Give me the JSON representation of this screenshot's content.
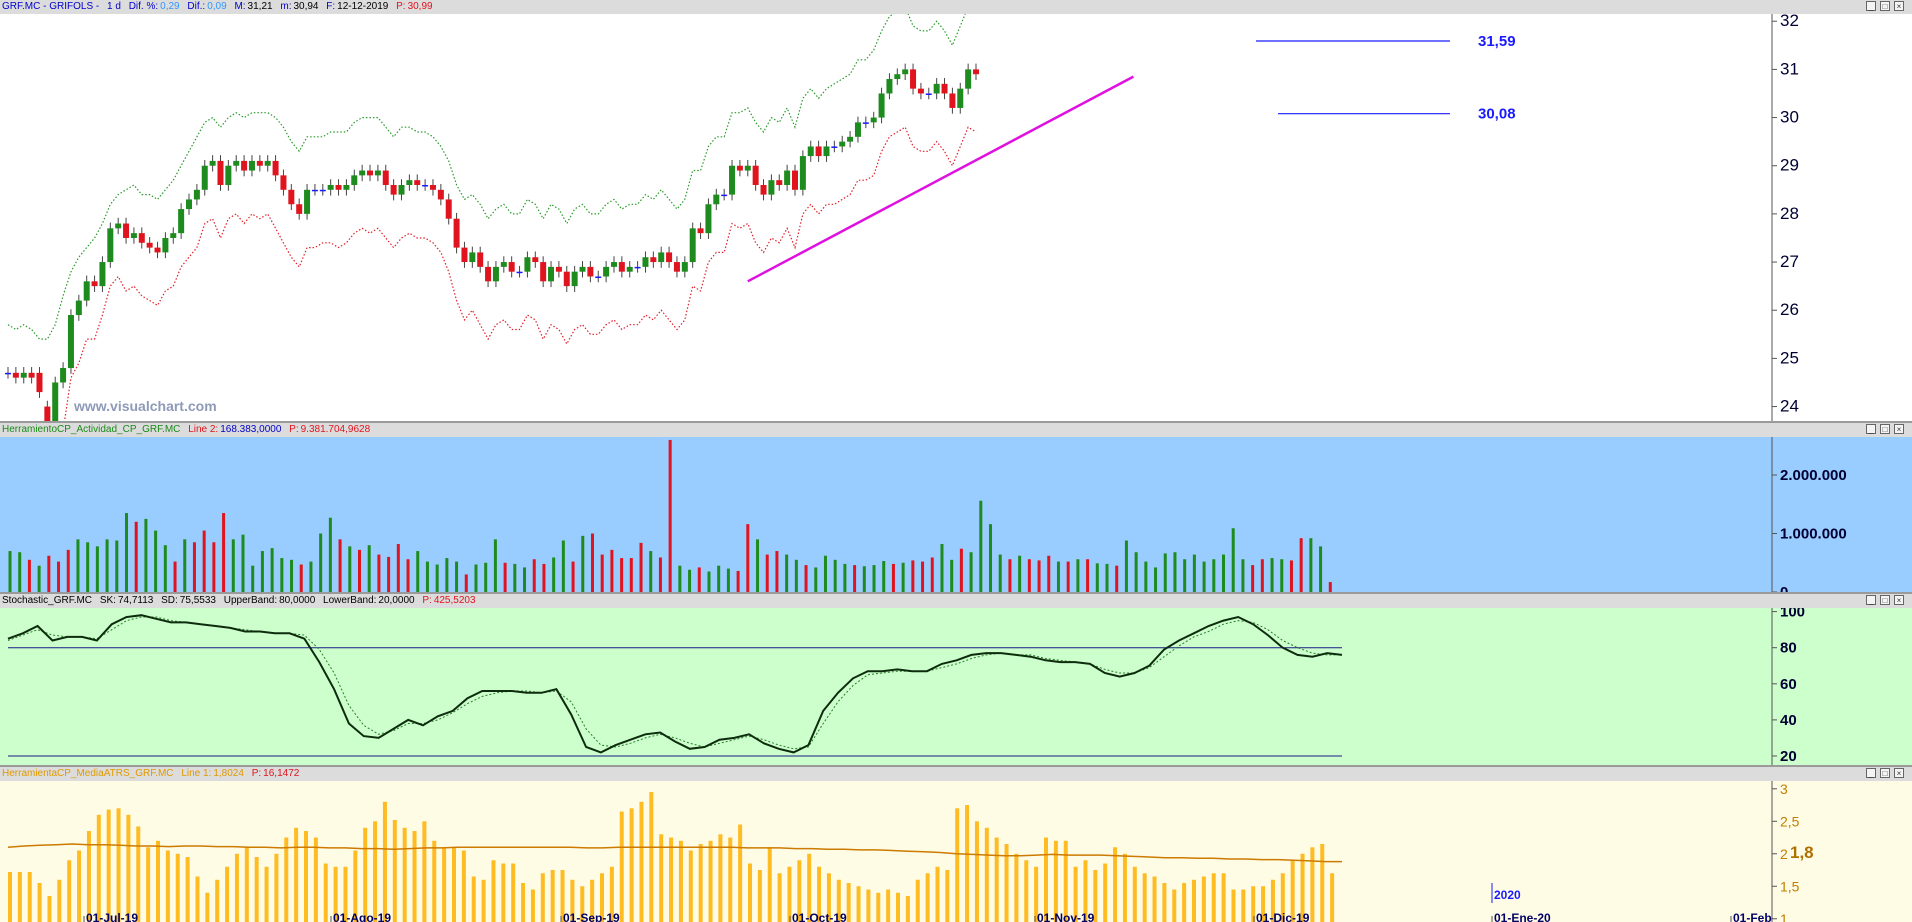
{
  "colors": {
    "up": "#1e8b1e",
    "down": "#e0141e",
    "neutral": "#1a1aff",
    "upper_band": "#2a9a2a",
    "lower_band": "#e0202a",
    "trendline": "#e010e0",
    "level_line": "#1a1aff",
    "volume_bg": "#99ccff",
    "stoch_bg": "#ccffcc",
    "atr_bg": "#fffce6",
    "atr_bar": "#ffbb22",
    "atr_avg": "#cc7a00"
  },
  "header_main": {
    "ticker": "GRF.MC - GRIFOLS -",
    "period": "1 d",
    "dif_pct_label": "Dif. %:",
    "dif_pct": "0,29",
    "dif_label": "Dif.:",
    "dif": "0,09",
    "max_label": "M:",
    "max": "31,21",
    "min_label": "m:",
    "min": "30,94",
    "date_label": "F:",
    "date": "12-12-2019",
    "price_label": "P:",
    "price": "30,99"
  },
  "header_volume": {
    "name": "HerramientoCP_Actividad_CP_GRF.MC",
    "line_label": "Line 2:",
    "line_value": "168.383,0000",
    "p_label": "P:",
    "p_value": "9.381.704,9628"
  },
  "header_stoch": {
    "name": "Stochastic_GRF.MC",
    "sk_label": "SK:",
    "sk": "74,7113",
    "sd_label": "SD:",
    "sd": "75,5533",
    "ub_label": "UpperBand:",
    "ub": "80,0000",
    "lb_label": "LowerBand:",
    "lb": "20,0000",
    "p_label": "P:",
    "p": "425,5203"
  },
  "header_atr": {
    "name": "HerramientaCP_MediaATRS_GRF.MC",
    "line_label": "Line 1:",
    "line_value": "1,8024",
    "p_label": "P:",
    "p_value": "16,1472"
  },
  "watermark": "www.visualchart.com",
  "year_marker": "2020",
  "x_axis": [
    "01-Jul-19",
    "01-Ago-19",
    "01-Sep-19",
    "01-Oct-19",
    "01-Nov-19",
    "01-Dic-19",
    "01-Ene-20",
    "01-Feb"
  ],
  "chart_data": [
    {
      "type": "candlestick",
      "y_ticks": [
        "24",
        "25",
        "26",
        "27",
        "28",
        "29",
        "30",
        "31",
        "32"
      ],
      "ylim": [
        23.7,
        32.15
      ],
      "levels": [
        {
          "label": "31,59",
          "value": 31.59
        },
        {
          "label": "30,08",
          "value": 30.08
        }
      ],
      "trendline": {
        "from": {
          "bar": 1,
          "value": 26.6
        },
        "to": {
          "bar": 1.77,
          "value": 30.85
        }
      },
      "close": [
        24.7,
        24.6,
        24.7,
        24.6,
        24.3,
        23.6,
        24.5,
        24.8,
        25.9,
        26.2,
        26.6,
        26.5,
        27.0,
        27.7,
        27.8,
        27.5,
        27.6,
        27.4,
        27.3,
        27.2,
        27.5,
        27.6,
        28.1,
        28.3,
        28.5,
        29.0,
        29.1,
        28.6,
        29.0,
        29.1,
        28.9,
        29.1,
        29.0,
        29.1,
        28.8,
        28.5,
        28.2,
        28.0,
        28.5,
        28.5,
        28.5,
        28.6,
        28.5,
        28.6,
        28.8,
        28.9,
        28.8,
        28.9,
        28.6,
        28.4,
        28.6,
        28.7,
        28.6,
        28.6,
        28.5,
        28.3,
        27.9,
        27.3,
        27.0,
        27.2,
        26.9,
        26.6,
        26.9,
        27.0,
        26.8,
        26.8,
        27.1,
        27.0,
        26.6,
        26.9,
        26.8,
        26.5,
        26.8,
        26.9,
        26.7,
        26.7,
        26.9,
        27.0,
        26.8,
        26.9,
        26.9,
        27.1,
        27.0,
        27.2,
        27.0,
        26.8,
        27.0,
        27.7,
        27.6,
        28.2,
        28.4,
        28.4,
        29.0,
        28.9,
        29.0,
        28.6,
        28.4,
        28.7,
        28.6,
        28.9,
        28.5,
        29.2,
        29.4,
        29.2,
        29.4,
        29.4,
        29.5,
        29.6,
        29.9,
        29.9,
        30.0,
        30.5,
        30.8,
        30.9,
        31.0,
        30.6,
        30.5,
        30.5,
        30.7,
        30.5,
        30.2,
        30.6,
        31.0,
        30.9
      ],
      "open": [
        24.7,
        24.7,
        24.6,
        24.7,
        24.7,
        24.0,
        23.6,
        24.5,
        24.8,
        25.9,
        26.2,
        26.6,
        26.5,
        27.0,
        27.7,
        27.8,
        27.5,
        27.6,
        27.4,
        27.3,
        27.2,
        27.5,
        27.6,
        28.1,
        28.3,
        28.5,
        29.0,
        29.1,
        28.6,
        29.0,
        29.1,
        28.9,
        29.1,
        29.0,
        29.1,
        28.8,
        28.5,
        28.2,
        28.0,
        28.5,
        28.5,
        28.5,
        28.6,
        28.5,
        28.6,
        28.8,
        28.9,
        28.8,
        28.9,
        28.6,
        28.4,
        28.6,
        28.7,
        28.6,
        28.6,
        28.5,
        28.3,
        27.9,
        27.3,
        27.0,
        27.2,
        26.9,
        26.6,
        26.9,
        27.0,
        26.8,
        26.8,
        27.1,
        27.0,
        26.6,
        26.9,
        26.8,
        26.5,
        26.8,
        26.9,
        26.7,
        26.7,
        26.9,
        27.0,
        26.8,
        26.9,
        26.9,
        27.1,
        27.0,
        27.2,
        27.0,
        26.8,
        27.0,
        27.7,
        27.6,
        28.2,
        28.4,
        28.4,
        29.0,
        28.9,
        29.0,
        28.6,
        28.4,
        28.7,
        28.6,
        28.9,
        28.5,
        29.2,
        29.4,
        29.2,
        29.4,
        29.4,
        29.5,
        29.6,
        29.9,
        29.9,
        30.0,
        30.5,
        30.8,
        30.9,
        31.0,
        30.6,
        30.5,
        30.5,
        30.7,
        30.5,
        30.2,
        30.6,
        31.0
      ],
      "upper_band": [
        25.7,
        25.6,
        25.7,
        25.6,
        25.4,
        25.4,
        25.7,
        26.3,
        26.8,
        27.1,
        27.3,
        27.5,
        27.8,
        28.2,
        28.4,
        28.5,
        28.6,
        28.4,
        28.4,
        28.3,
        28.5,
        28.7,
        29.0,
        29.3,
        29.6,
        29.9,
        30.0,
        29.8,
        30.0,
        30.1,
        30.0,
        30.1,
        30.1,
        30.1,
        30.0,
        29.8,
        29.5,
        29.3,
        29.6,
        29.6,
        29.6,
        29.7,
        29.7,
        29.7,
        29.9,
        30.0,
        30.0,
        30.0,
        29.8,
        29.6,
        29.8,
        29.8,
        29.7,
        29.7,
        29.6,
        29.4,
        29.1,
        28.6,
        28.3,
        28.4,
        28.2,
        27.9,
        28.1,
        28.2,
        28.0,
        28.0,
        28.3,
        28.2,
        27.9,
        28.2,
        28.1,
        27.8,
        28.1,
        28.2,
        28.0,
        28.0,
        28.2,
        28.3,
        28.1,
        28.2,
        28.2,
        28.4,
        28.3,
        28.5,
        28.3,
        28.1,
        28.3,
        28.9,
        28.9,
        29.4,
        29.6,
        29.6,
        30.1,
        30.1,
        30.2,
        29.9,
        29.7,
        30.0,
        29.9,
        30.2,
        29.8,
        30.4,
        30.6,
        30.4,
        30.6,
        30.7,
        30.8,
        30.9,
        31.2,
        31.2,
        31.4,
        31.8,
        32.1,
        32.2,
        32.3,
        31.9,
        31.8,
        31.8,
        32.0,
        31.8,
        31.5,
        31.9,
        32.3,
        32.2
      ],
      "lower_band": [
        23.6,
        23.5,
        23.6,
        23.5,
        23.2,
        22.6,
        23.3,
        23.5,
        24.6,
        24.9,
        25.4,
        25.4,
        25.9,
        26.5,
        26.7,
        26.4,
        26.5,
        26.3,
        26.2,
        26.1,
        26.4,
        26.5,
        26.9,
        27.1,
        27.3,
        27.8,
        27.9,
        27.5,
        27.9,
        28.0,
        27.8,
        28.0,
        27.9,
        28.0,
        27.7,
        27.4,
        27.1,
        26.9,
        27.3,
        27.3,
        27.4,
        27.4,
        27.3,
        27.4,
        27.6,
        27.7,
        27.6,
        27.7,
        27.5,
        27.3,
        27.5,
        27.6,
        27.5,
        27.5,
        27.4,
        27.2,
        26.8,
        26.2,
        25.8,
        26.0,
        25.7,
        25.4,
        25.7,
        25.8,
        25.6,
        25.6,
        25.9,
        25.8,
        25.4,
        25.7,
        25.6,
        25.3,
        25.6,
        25.7,
        25.5,
        25.5,
        25.7,
        25.8,
        25.6,
        25.7,
        25.7,
        25.9,
        25.8,
        26.0,
        25.8,
        25.6,
        25.8,
        26.5,
        26.4,
        27.0,
        27.2,
        27.2,
        27.8,
        27.7,
        27.8,
        27.4,
        27.2,
        27.5,
        27.4,
        27.7,
        27.3,
        28.0,
        28.2,
        28.0,
        28.2,
        28.2,
        28.3,
        28.4,
        28.7,
        28.7,
        28.8,
        29.3,
        29.6,
        29.7,
        29.8,
        29.4,
        29.3,
        29.3,
        29.5,
        29.3,
        29.0,
        29.4,
        29.8,
        29.7
      ]
    },
    {
      "type": "bar",
      "title": "volume",
      "y_ticks": [
        "2.000.000",
        "1.000.000",
        "0"
      ],
      "ylim": [
        0,
        2650000
      ],
      "values": [
        700000,
        680000,
        550000,
        450000,
        620000,
        520000,
        720000,
        900000,
        850000,
        780000,
        900000,
        880000,
        1350000,
        1200000,
        1250000,
        1050000,
        800000,
        520000,
        900000,
        850000,
        1050000,
        850000,
        1350000,
        900000,
        980000,
        450000,
        700000,
        750000,
        580000,
        550000,
        470000,
        520000,
        1000000,
        1270000,
        900000,
        780000,
        720000,
        800000,
        640000,
        600000,
        820000,
        560000,
        700000,
        520000,
        470000,
        580000,
        520000,
        300000,
        470000,
        500000,
        900000,
        500000,
        480000,
        420000,
        560000,
        480000,
        590000,
        880000,
        520000,
        960000,
        1000000,
        640000,
        720000,
        580000,
        580000,
        840000,
        700000,
        590000,
        2600000,
        450000,
        380000,
        420000,
        350000,
        450000,
        400000,
        360000,
        1160000,
        900000,
        640000,
        700000,
        640000,
        550000,
        460000,
        420000,
        620000,
        550000,
        480000,
        460000,
        440000,
        460000,
        530000,
        480000,
        500000,
        540000,
        520000,
        590000,
        820000,
        550000,
        740000,
        680000,
        1560000,
        1160000,
        640000,
        560000,
        620000,
        560000,
        540000,
        620000,
        520000,
        520000,
        560000,
        560000,
        490000,
        480000,
        450000,
        880000,
        680000,
        520000,
        420000,
        660000,
        680000,
        560000,
        640000,
        520000,
        560000,
        640000,
        1090000,
        560000,
        460000,
        560000,
        580000,
        560000,
        540000,
        920000,
        920000,
        780000,
        170000
      ]
    },
    {
      "type": "line",
      "title": "stochastic",
      "y_ticks": [
        "20",
        "40",
        "60",
        "80",
        "100"
      ],
      "ylim": [
        15,
        102
      ],
      "bands": [
        80,
        20
      ],
      "sk": [
        85,
        88,
        92,
        84,
        86,
        86,
        84,
        93,
        97,
        98,
        96,
        94,
        94,
        93,
        92,
        91,
        89,
        89,
        88,
        88,
        85,
        72,
        57,
        38,
        31,
        30,
        35,
        40,
        37,
        42,
        45,
        52,
        56,
        56,
        56,
        55,
        55,
        57,
        43,
        25,
        22,
        26,
        29,
        32,
        33,
        28,
        24,
        25,
        29,
        30,
        32,
        27,
        24,
        22,
        26,
        45,
        55,
        63,
        67,
        67,
        68,
        67,
        67,
        71,
        73,
        76,
        77,
        77,
        76,
        75,
        73,
        72,
        72,
        71,
        66,
        64,
        66,
        70,
        79,
        84,
        88,
        92,
        95,
        97,
        93,
        87,
        80,
        76,
        75,
        77,
        76
      ],
      "sd": [
        84,
        87,
        90,
        87,
        86,
        86,
        85,
        90,
        95,
        97,
        97,
        95,
        94,
        93,
        92,
        91,
        90,
        89,
        88,
        88,
        87,
        79,
        66,
        48,
        37,
        32,
        34,
        38,
        38,
        40,
        44,
        49,
        53,
        55,
        56,
        56,
        55,
        56,
        50,
        35,
        26,
        25,
        27,
        30,
        32,
        30,
        27,
        25,
        27,
        29,
        31,
        29,
        26,
        24,
        25,
        38,
        50,
        59,
        65,
        66,
        67,
        67,
        67,
        69,
        71,
        74,
        76,
        77,
        76,
        76,
        74,
        73,
        72,
        71,
        68,
        66,
        66,
        69,
        75,
        81,
        86,
        89,
        93,
        95,
        94,
        90,
        84,
        80,
        77,
        76,
        76
      ]
    },
    {
      "type": "bar",
      "title": "atr",
      "y_ticks": [
        "1",
        "1,5",
        "2",
        "2,5",
        "3"
      ],
      "value_label": "1,8",
      "ylim": [
        0.95,
        3.12
      ],
      "values": [
        1.72,
        1.72,
        1.72,
        1.55,
        1.35,
        1.6,
        1.9,
        2.05,
        2.35,
        2.6,
        2.68,
        2.7,
        2.6,
        2.42,
        2.1,
        2.2,
        2.05,
        2.0,
        1.95,
        1.65,
        1.4,
        1.6,
        1.8,
        2.0,
        2.1,
        1.95,
        1.8,
        2.0,
        2.25,
        2.4,
        2.35,
        2.25,
        1.85,
        1.8,
        1.8,
        2.05,
        2.4,
        2.5,
        2.8,
        2.52,
        2.4,
        2.35,
        2.5,
        2.2,
        2.1,
        2.1,
        2.05,
        1.65,
        1.6,
        1.9,
        1.85,
        1.85,
        1.55,
        1.45,
        1.7,
        1.75,
        1.75,
        1.6,
        1.5,
        1.6,
        1.7,
        1.8,
        2.65,
        2.7,
        2.8,
        2.95,
        2.3,
        2.25,
        2.2,
        2.05,
        2.15,
        2.2,
        2.3,
        2.25,
        2.45,
        1.85,
        1.75,
        2.1,
        1.7,
        1.8,
        1.9,
        2.0,
        1.8,
        1.7,
        1.6,
        1.55,
        1.5,
        1.45,
        1.4,
        1.45,
        1.4,
        1.35,
        1.6,
        1.7,
        1.8,
        1.75,
        2.7,
        2.75,
        2.5,
        2.4,
        2.25,
        2.15,
        2.0,
        1.9,
        1.8,
        2.25,
        2.2,
        2.2,
        1.8,
        1.9,
        1.75,
        1.85,
        2.1,
        2.0,
        1.8,
        1.7,
        1.65,
        1.55,
        1.45,
        1.55,
        1.6,
        1.65,
        1.7,
        1.7,
        1.45,
        1.45,
        1.5,
        1.5,
        1.6,
        1.7,
        1.9,
        2.0,
        2.1,
        2.15,
        1.7
      ],
      "average": [
        2.1,
        2.12,
        2.13,
        2.14,
        2.15,
        2.14,
        2.14,
        2.13,
        2.12,
        2.12,
        2.11,
        2.12,
        2.12,
        2.11,
        2.11,
        2.1,
        2.1,
        2.09,
        2.1,
        2.1,
        2.09,
        2.09,
        2.08,
        2.08,
        2.07,
        2.08,
        2.09,
        2.09,
        2.1,
        2.1,
        2.1,
        2.1,
        2.1,
        2.1,
        2.1,
        2.1,
        2.09,
        2.09,
        2.1,
        2.1,
        2.1,
        2.1,
        2.1,
        2.1,
        2.1,
        2.1,
        2.09,
        2.09,
        2.09,
        2.08,
        2.08,
        2.07,
        2.07,
        2.06,
        2.06,
        2.05,
        2.04,
        2.03,
        2.02,
        2.0,
        1.99,
        1.98,
        1.97,
        1.97,
        1.98,
        1.99,
        1.98,
        1.98,
        1.98,
        1.97,
        1.96,
        1.95,
        1.94,
        1.94,
        1.93,
        1.93,
        1.92,
        1.92,
        1.91,
        1.91,
        1.9,
        1.89,
        1.88,
        1.88
      ]
    }
  ]
}
